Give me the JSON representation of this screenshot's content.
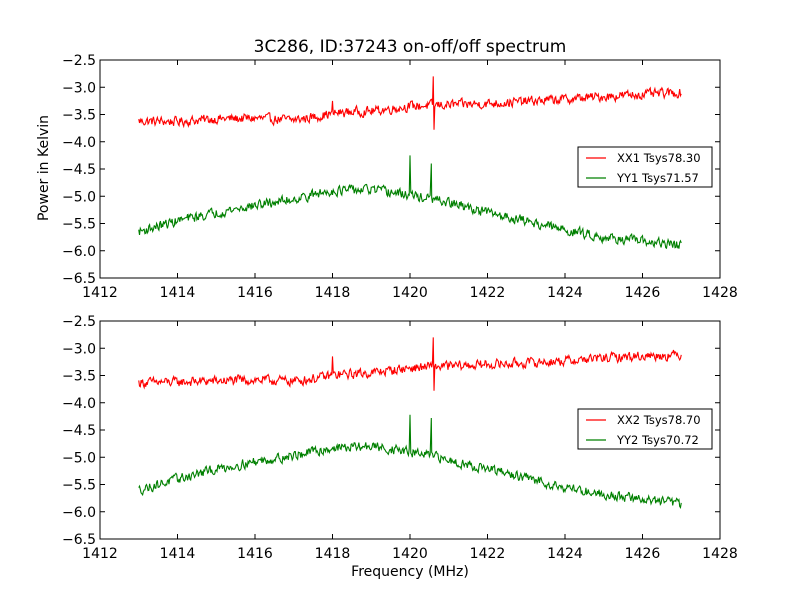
{
  "figure": {
    "title": "3C286, ID:37243 on-off/off spectrum",
    "xlabel": "Frequency (MHz)",
    "ylabel": "Power in Kelvin"
  },
  "colors": {
    "xx": "#ff0000",
    "yy": "#008000",
    "axes": "#000000",
    "background": "#ffffff"
  },
  "chart_data": [
    {
      "type": "line",
      "title": "3C286, ID:37243 on-off/off spectrum",
      "xlabel": "",
      "ylabel": "Power in Kelvin",
      "xlim": [
        1412,
        1428
      ],
      "ylim": [
        -6.5,
        -2.5
      ],
      "xticks": [
        1412,
        1414,
        1416,
        1418,
        1420,
        1422,
        1424,
        1426,
        1428
      ],
      "yticks": [
        -2.5,
        -3.0,
        -3.5,
        -4.0,
        -4.5,
        -5.0,
        -5.5,
        -6.0,
        -6.5
      ],
      "grid": false,
      "legend_position": "right",
      "series": [
        {
          "name": "XX1 Tsys78.30",
          "color": "#ff0000",
          "x": [
            1413.0,
            1414.0,
            1415.0,
            1416.0,
            1417.0,
            1417.5,
            1418.0,
            1418.5,
            1419.0,
            1420.0,
            1420.6,
            1421.0,
            1422.0,
            1423.0,
            1424.0,
            1425.0,
            1426.0,
            1427.0
          ],
          "y": [
            -3.62,
            -3.63,
            -3.58,
            -3.57,
            -3.6,
            -3.55,
            -3.48,
            -3.45,
            -3.44,
            -3.35,
            -3.33,
            -3.32,
            -3.3,
            -3.26,
            -3.22,
            -3.17,
            -3.13,
            -3.1
          ],
          "noise": 0.08,
          "spikes": [
            {
              "x": 1418.0,
              "y": -3.25
            },
            {
              "x": 1420.6,
              "y": -2.8
            },
            {
              "x": 1420.62,
              "y": -3.78
            }
          ]
        },
        {
          "name": "YY1 Tsys71.57",
          "color": "#008000",
          "x": [
            1413.0,
            1414.0,
            1415.0,
            1416.0,
            1417.0,
            1418.0,
            1419.0,
            1420.0,
            1421.0,
            1422.0,
            1423.0,
            1424.0,
            1425.0,
            1426.0,
            1427.0
          ],
          "y": [
            -5.65,
            -5.45,
            -5.3,
            -5.17,
            -5.05,
            -4.9,
            -4.88,
            -4.98,
            -5.12,
            -5.3,
            -5.45,
            -5.62,
            -5.75,
            -5.83,
            -5.9
          ],
          "noise": 0.08,
          "spikes": [
            {
              "x": 1420.0,
              "y": -4.25
            },
            {
              "x": 1420.55,
              "y": -4.4
            }
          ]
        }
      ]
    },
    {
      "type": "line",
      "title": "",
      "xlabel": "Frequency (MHz)",
      "ylabel": "",
      "xlim": [
        1412,
        1428
      ],
      "ylim": [
        -6.5,
        -2.5
      ],
      "xticks": [
        1412,
        1414,
        1416,
        1418,
        1420,
        1422,
        1424,
        1426,
        1428
      ],
      "yticks": [
        -2.5,
        -3.0,
        -3.5,
        -4.0,
        -4.5,
        -5.0,
        -5.5,
        -6.0,
        -6.5
      ],
      "grid": false,
      "legend_position": "right",
      "series": [
        {
          "name": "XX2 Tsys78.70",
          "color": "#ff0000",
          "x": [
            1413.0,
            1414.0,
            1415.0,
            1416.0,
            1417.0,
            1417.5,
            1418.0,
            1418.5,
            1419.0,
            1420.0,
            1420.6,
            1421.0,
            1422.0,
            1423.0,
            1424.0,
            1425.0,
            1426.0,
            1427.0
          ],
          "y": [
            -3.63,
            -3.62,
            -3.6,
            -3.58,
            -3.6,
            -3.56,
            -3.5,
            -3.47,
            -3.45,
            -3.36,
            -3.34,
            -3.33,
            -3.3,
            -3.27,
            -3.23,
            -3.18,
            -3.14,
            -3.12
          ],
          "noise": 0.08,
          "spikes": [
            {
              "x": 1418.0,
              "y": -3.15
            },
            {
              "x": 1420.6,
              "y": -2.8
            },
            {
              "x": 1420.62,
              "y": -3.78
            }
          ]
        },
        {
          "name": "YY2 Tsys70.72",
          "color": "#008000",
          "x": [
            1413.0,
            1414.0,
            1415.0,
            1416.0,
            1417.0,
            1418.0,
            1419.0,
            1420.0,
            1421.0,
            1422.0,
            1423.0,
            1424.0,
            1425.0,
            1426.0,
            1427.0
          ],
          "y": [
            -5.6,
            -5.4,
            -5.22,
            -5.08,
            -4.97,
            -4.83,
            -4.8,
            -4.9,
            -5.05,
            -5.22,
            -5.38,
            -5.55,
            -5.68,
            -5.77,
            -5.85
          ],
          "noise": 0.08,
          "spikes": [
            {
              "x": 1420.0,
              "y": -4.22
            },
            {
              "x": 1420.55,
              "y": -4.28
            }
          ]
        }
      ]
    }
  ]
}
